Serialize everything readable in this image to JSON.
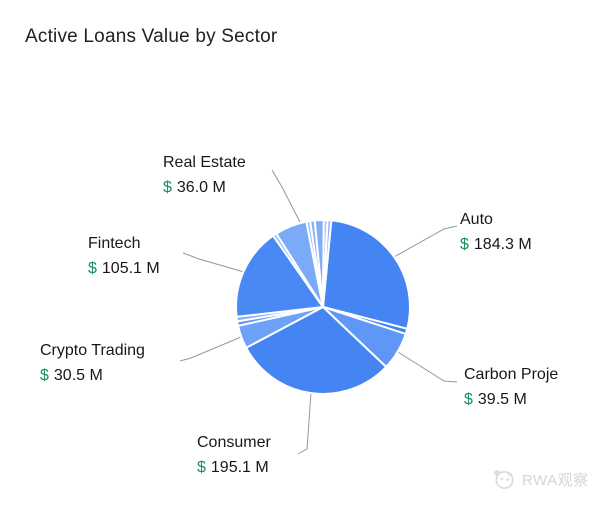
{
  "title": "Active Loans Value by Sector",
  "watermark": {
    "text": "RWA观察",
    "logo": "panda-logo-icon"
  },
  "chart_data": {
    "type": "pie",
    "title": "Active Loans Value by Sector",
    "unit": "USD millions",
    "value_prefix": "$",
    "value_suffix": "M",
    "legend": "none",
    "label_style": "outside labels with gray leader lines, green dollar sign",
    "slices": [
      {
        "label": "Auto",
        "value": 184.3,
        "display_value": "184.3 M",
        "labeled": true,
        "start_deg": 5.5,
        "end_deg": 104.5,
        "color": "#4484f3"
      },
      {
        "label": "Other",
        "value": 6.0,
        "labeled": false,
        "value_estimated": true,
        "start_deg": 104.5,
        "end_deg": 108,
        "color": "#4182ef"
      },
      {
        "label": "Carbon Proje",
        "value": 39.5,
        "display_value": "39.5 M",
        "labeled": true,
        "start_deg": 108,
        "end_deg": 133.5,
        "color": "#5f97f6"
      },
      {
        "label": "Consumer",
        "value": 195.1,
        "display_value": "195.1 M",
        "labeled": true,
        "start_deg": 133.5,
        "end_deg": 242,
        "color": "#4484f3"
      },
      {
        "label": "Crypto Trading",
        "value": 30.5,
        "display_value": "30.5 M",
        "labeled": true,
        "start_deg": 242,
        "end_deg": 257.5,
        "color": "#6ca2f7"
      },
      {
        "label": "Other",
        "value": 5.3,
        "labeled": false,
        "value_estimated": true,
        "start_deg": 257.5,
        "end_deg": 260.5,
        "color": "#5d95f5"
      },
      {
        "label": "Other",
        "value": 5.3,
        "labeled": false,
        "value_estimated": true,
        "start_deg": 260.5,
        "end_deg": 263.5,
        "color": "#85b1f8"
      },
      {
        "label": "Fintech",
        "value": 105.1,
        "display_value": "105.1 M",
        "labeled": true,
        "start_deg": 263.5,
        "end_deg": 325,
        "color": "#4a88f4"
      },
      {
        "label": "Other",
        "value": 4.4,
        "labeled": false,
        "value_estimated": true,
        "start_deg": 325,
        "end_deg": 327.5,
        "color": "#93baf9"
      },
      {
        "label": "Real Estate",
        "value": 36.0,
        "display_value": "36.0 M",
        "labeled": true,
        "start_deg": 327.5,
        "end_deg": 349,
        "color": "#7babf8"
      },
      {
        "label": "Other",
        "value": 4.4,
        "labeled": false,
        "value_estimated": true,
        "start_deg": 349,
        "end_deg": 351.5,
        "color": "#9abefa"
      },
      {
        "label": "Other",
        "value": 5.3,
        "labeled": false,
        "value_estimated": true,
        "start_deg": 351.5,
        "end_deg": 354.5,
        "color": "#86b2f8"
      },
      {
        "label": "Other",
        "value": 10.7,
        "labeled": false,
        "value_estimated": true,
        "start_deg": 354.5,
        "end_deg": 360.5,
        "color": "#82aef8"
      },
      {
        "label": "Other",
        "value": 4.4,
        "labeled": false,
        "value_estimated": true,
        "start_deg": 360.5,
        "end_deg": 363,
        "color": "#a5c5fa"
      },
      {
        "label": "Other",
        "value": 4.4,
        "labeled": false,
        "value_estimated": true,
        "start_deg": 363,
        "end_deg": 365.5,
        "color": "#8bb4f9"
      }
    ],
    "leader_line_color": "#8b99ad",
    "slice_gap_color": "#ffffff"
  }
}
